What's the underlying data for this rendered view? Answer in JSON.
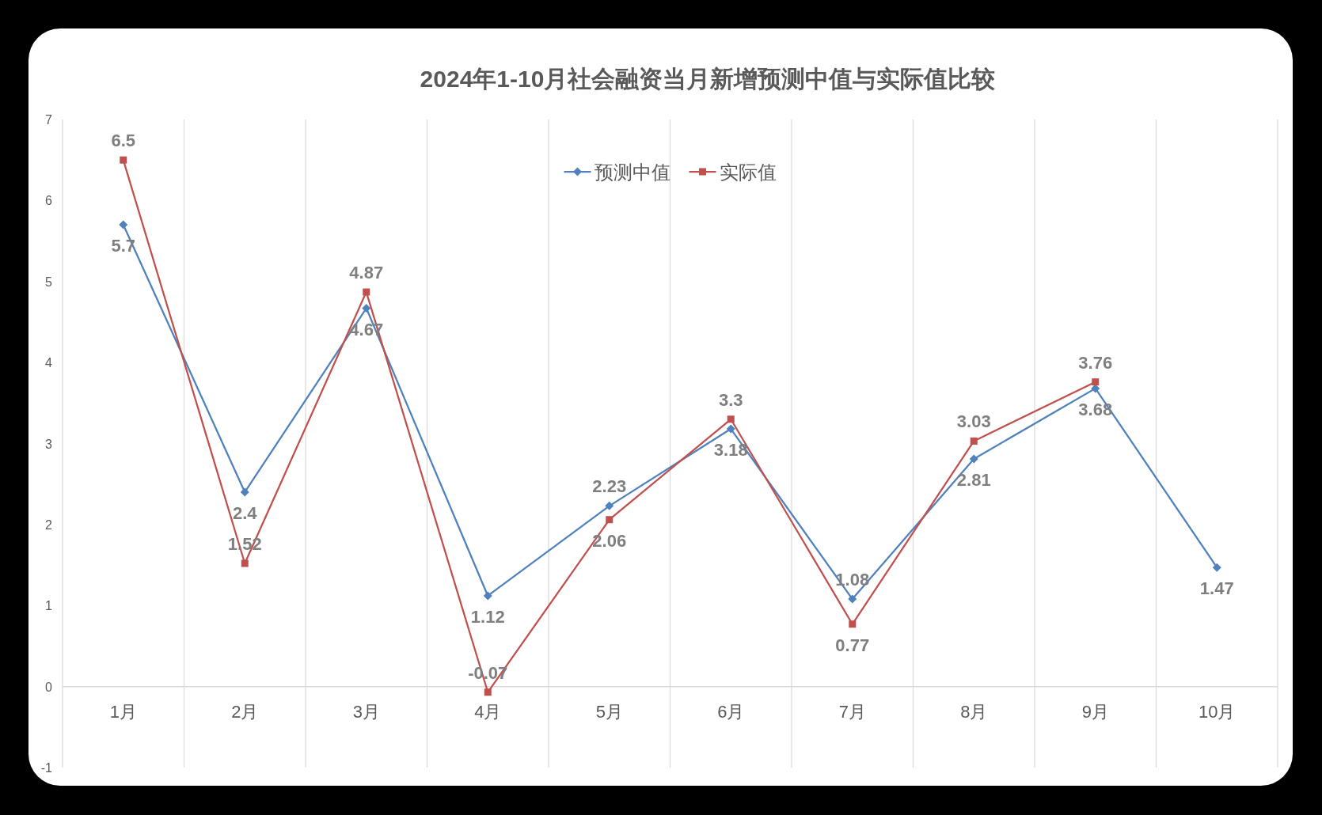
{
  "chart_data": {
    "type": "line",
    "title": "2024年1-10月社会融资当月新增预测中值与实际值比较",
    "categories": [
      "1月",
      "2月",
      "3月",
      "4月",
      "5月",
      "6月",
      "7月",
      "8月",
      "9月",
      "10月"
    ],
    "series": [
      {
        "name": "预测中值",
        "color": "#4f81bd",
        "marker": "diamond",
        "values": [
          5.7,
          2.4,
          4.67,
          1.12,
          2.23,
          3.18,
          1.08,
          2.81,
          3.68,
          1.47
        ]
      },
      {
        "name": "实际值",
        "color": "#c0504d",
        "marker": "square",
        "values": [
          6.5,
          1.52,
          4.87,
          -0.07,
          2.06,
          3.3,
          0.77,
          3.03,
          3.76,
          null
        ]
      }
    ],
    "ylim": [
      -1,
      7
    ],
    "yticks": [
      -1,
      0,
      1,
      2,
      3,
      4,
      5,
      6,
      7
    ],
    "grid": "x",
    "legend": "top",
    "data_labels": true,
    "line_style": "solid"
  }
}
